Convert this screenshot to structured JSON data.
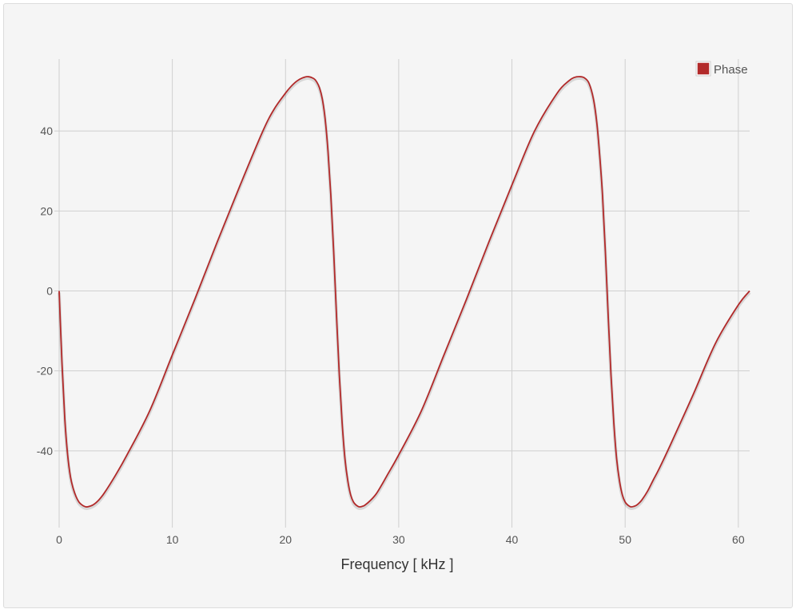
{
  "chart_data": {
    "type": "line",
    "title": "",
    "xlabel": "Frequency [ kHz ]",
    "ylabel": "",
    "xlim": [
      0,
      61
    ],
    "ylim": [
      -58,
      58
    ],
    "x_ticks": [
      0,
      10,
      20,
      30,
      40,
      50,
      60
    ],
    "y_ticks": [
      -40,
      -20,
      0,
      20,
      40
    ],
    "grid": true,
    "legend_position": "top-right",
    "series": [
      {
        "name": "Phase",
        "color": "#b22a2a",
        "x": [
          0,
          0.25,
          0.5,
          0.75,
          1.0,
          1.25,
          1.5,
          1.75,
          2.0,
          2.25,
          2.5,
          3.0,
          3.5,
          4.0,
          5.0,
          6.0,
          8.0,
          10.0,
          12.0,
          14.0,
          16.0,
          18.0,
          19.0,
          20.0,
          20.5,
          21.0,
          21.5,
          22.0,
          22.5,
          22.75,
          23.0,
          23.25,
          23.5,
          23.75,
          24.0,
          24.25,
          24.5,
          24.75,
          25.0,
          25.25,
          25.5,
          25.75,
          26.0,
          26.25,
          26.5,
          26.75,
          27.0,
          27.5,
          28.0,
          28.5,
          29.0,
          30.0,
          32.0,
          34.0,
          36.0,
          38.0,
          40.0,
          42.0,
          44.0,
          45.0,
          45.5,
          46.0,
          46.4,
          46.8,
          47.2,
          47.5,
          47.75,
          48.0,
          48.25,
          48.5,
          48.75,
          49.0,
          49.25,
          49.5,
          49.75,
          50.0,
          50.25,
          50.5,
          50.75,
          51.0,
          51.25,
          51.5,
          52.0,
          52.5,
          53.0,
          54.0,
          56.0,
          58.0,
          60.0,
          61.0
        ],
        "y": [
          0,
          -18,
          -32,
          -41,
          -46.5,
          -49.5,
          -51.5,
          -52.8,
          -53.5,
          -53.9,
          -54.0,
          -53.5,
          -52.3,
          -50.5,
          -46.0,
          -41.0,
          -30.0,
          -16.0,
          -2.0,
          12.5,
          26.5,
          40.0,
          45.5,
          49.5,
          51.2,
          52.5,
          53.3,
          53.6,
          53.1,
          52.3,
          50.8,
          48.0,
          43.0,
          35.0,
          24.0,
          10.0,
          -6.0,
          -21.0,
          -33.0,
          -42.0,
          -47.5,
          -51.0,
          -52.8,
          -53.6,
          -54.0,
          -53.9,
          -53.6,
          -52.4,
          -50.8,
          -48.5,
          -46.0,
          -41.0,
          -30.0,
          -16.0,
          -2.0,
          12.5,
          26.5,
          40.0,
          49.5,
          52.5,
          53.4,
          53.6,
          53.3,
          52.0,
          48.0,
          42.0,
          34.0,
          24.0,
          10.0,
          -6.0,
          -21.0,
          -33.0,
          -42.0,
          -47.5,
          -51.0,
          -52.8,
          -53.6,
          -54.0,
          -53.9,
          -53.6,
          -53.0,
          -52.2,
          -50.0,
          -47.2,
          -44.5,
          -38.5,
          -26.0,
          -13.0,
          -3.5,
          0
        ]
      }
    ]
  }
}
